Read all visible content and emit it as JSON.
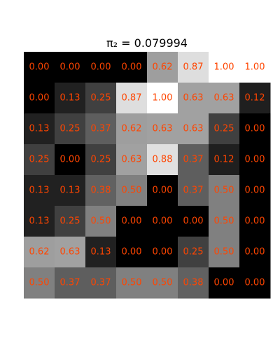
{
  "chart_data": {
    "type": "heatmap",
    "title": "π₂ = 0.079994",
    "colormap": "gray",
    "vmin": 0.0,
    "vmax": 1.0,
    "label_color": "#ff4500",
    "rows": 8,
    "cols": 8,
    "values": [
      [
        0.0,
        0.0,
        0.0,
        0.0,
        0.62,
        0.87,
        1.0,
        1.0
      ],
      [
        0.0,
        0.13,
        0.25,
        0.87,
        1.0,
        0.63,
        0.63,
        0.12
      ],
      [
        0.13,
        0.25,
        0.37,
        0.62,
        0.63,
        0.63,
        0.25,
        0.0
      ],
      [
        0.25,
        0.0,
        0.25,
        0.63,
        0.88,
        0.37,
        0.12,
        0.0
      ],
      [
        0.13,
        0.13,
        0.38,
        0.5,
        0.0,
        0.37,
        0.5,
        0.0
      ],
      [
        0.13,
        0.25,
        0.5,
        0.0,
        0.0,
        0.0,
        0.5,
        0.0
      ],
      [
        0.62,
        0.63,
        0.13,
        0.0,
        0.0,
        0.25,
        0.5,
        0.0
      ],
      [
        0.5,
        0.37,
        0.37,
        0.5,
        0.5,
        0.38,
        0.0,
        0.0
      ]
    ],
    "labels": [
      [
        "0.00",
        "0.00",
        "0.00",
        "0.00",
        "0.62",
        "0.87",
        "1.00",
        "1.00"
      ],
      [
        "0.00",
        "0.13",
        "0.25",
        "0.87",
        "1.00",
        "0.63",
        "0.63",
        "0.12"
      ],
      [
        "0.13",
        "0.25",
        "0.37",
        "0.62",
        "0.63",
        "0.63",
        "0.25",
        "0.00"
      ],
      [
        "0.25",
        "0.00",
        "0.25",
        "0.63",
        "0.88",
        "0.37",
        "0.12",
        "0.00"
      ],
      [
        "0.13",
        "0.13",
        "0.38",
        "0.50",
        "0.00",
        "0.37",
        "0.50",
        "0.00"
      ],
      [
        "0.13",
        "0.25",
        "0.50",
        "0.00",
        "0.00",
        "0.00",
        "0.50",
        "0.00"
      ],
      [
        "0.62",
        "0.63",
        "0.13",
        "0.00",
        "0.00",
        "0.25",
        "0.50",
        "0.00"
      ],
      [
        "0.50",
        "0.37",
        "0.37",
        "0.50",
        "0.50",
        "0.38",
        "0.00",
        "0.00"
      ]
    ],
    "grid": false,
    "axes_visible": false
  }
}
